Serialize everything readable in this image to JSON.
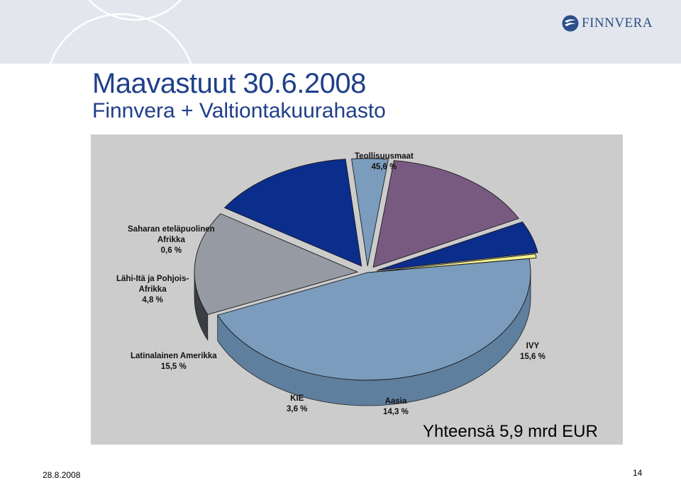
{
  "header": {
    "logo_text": "FINNVERA"
  },
  "slide": {
    "title": "Maavastuut 30.6.2008",
    "subtitle": "Finnvera + Valtiontakuurahasto",
    "total": "Yhteensä 5,9 mrd EUR",
    "date": "28.8.2008",
    "page_number": "14"
  },
  "chart_data": {
    "type": "pie",
    "title": "",
    "legend": "none",
    "slices": [
      {
        "key": "teollisuusmaat",
        "name": "Teollisuusmaat",
        "value": 45.6,
        "value_label": "45,6 %",
        "color": "#7b9cbd",
        "side": "#5f7f9e"
      },
      {
        "key": "ivy",
        "name": "IVY",
        "value": 15.6,
        "value_label": "15,6 %",
        "color": "#959aa3",
        "side": "#3a3d42"
      },
      {
        "key": "aasia",
        "name": "Aasia",
        "value": 14.3,
        "value_label": "14,3 %",
        "color": "#0b2d8c",
        "side": "#0b2477"
      },
      {
        "key": "kie",
        "name": "KIE",
        "value": 3.6,
        "value_label": "3,6 %",
        "color": "#7b9cbd",
        "side": "#7b9cbd"
      },
      {
        "key": "latinalainen_amerikka",
        "name": "Latinalainen Amerikka",
        "value": 15.5,
        "value_label": "15,5 %",
        "color": "#785a80",
        "side": "#785a80"
      },
      {
        "key": "lahi_ita",
        "name": "Lähi-Itä ja Pohjois-Afrikka",
        "value": 4.8,
        "value_label": "4,8 %",
        "color": "#0b2d8c",
        "side": "#0b2477"
      },
      {
        "key": "saharan",
        "name": "Saharan eteläpuolinen Afrikka",
        "value": 0.6,
        "value_label": "0,6 %",
        "color": "#f1ef8c",
        "side": "#c9c86c"
      }
    ],
    "labels": {
      "teollisuusmaat": [
        "Teollisuusmaat",
        "45,6 %"
      ],
      "ivy": [
        "IVY",
        "15,6 %"
      ],
      "aasia": [
        "Aasia",
        "14,3 %"
      ],
      "kie": [
        "KIE",
        "3,6 %"
      ],
      "latinalainen_amerikka": [
        "Latinalainen Amerikka",
        "15,5 %"
      ],
      "lahi_ita": [
        "Lähi-Itä ja Pohjois-",
        "Afrikka",
        "4,8 %"
      ],
      "saharan": [
        "Saharan eteläpuolinen",
        "Afrikka",
        "0,6 %"
      ]
    }
  }
}
